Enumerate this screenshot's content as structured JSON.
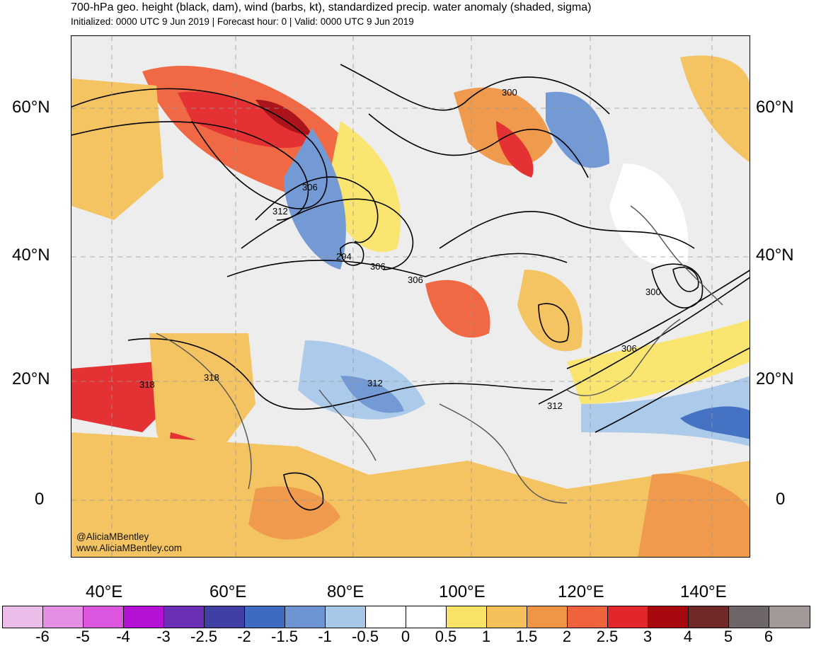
{
  "title": "700-hPa geo. height (black, dam), wind (barbs, kt), standardized precip. water anomaly (shaded, sigma)",
  "subtitle": "Initialized: 0000 UTC 9 Jun 2019 | Forecast hour: 0 | Valid: 0000 UTC 9 Jun 2019",
  "lat_labels": {
    "n60": "60°N",
    "n40": "40°N",
    "n20": "20°N",
    "eq": "0"
  },
  "lon_labels": {
    "e40": "40°E",
    "e60": "60°E",
    "e80": "80°E",
    "e100": "100°E",
    "e120": "120°E",
    "e140": "140°E"
  },
  "contour_labels": {
    "c300_north": "300",
    "c306_west": "306",
    "c312_west": "312",
    "c294": "294",
    "c306_center": "306",
    "c306_center2": "306",
    "c300_east": "300",
    "c306_east": "306",
    "c318_a": "318",
    "c318_b": "318",
    "c312_center": "312",
    "c312_east": "312"
  },
  "credit": {
    "handle": "@AliciaMBentley",
    "site": "www.AliciaMBentley.com"
  },
  "colorbar": {
    "colors": [
      "#ebbde8",
      "#e68ee3",
      "#dd56e0",
      "#b512d6",
      "#6a2fb5",
      "#3f3fa6",
      "#3d6bc0",
      "#6d95d3",
      "#a8c8e8",
      "#ffffff",
      "#ffffff",
      "#f9e469",
      "#f4c05a",
      "#ef9544",
      "#f0623b",
      "#e3262a",
      "#a6080e",
      "#712828",
      "#6e6666",
      "#a29999"
    ],
    "labels": [
      "-6",
      "-5",
      "-4",
      "-3",
      "-2.5",
      "-2",
      "-1.5",
      "-1",
      "-0.5",
      "0",
      "0.5",
      "1",
      "1.5",
      "2",
      "2.5",
      "3",
      "4",
      "5",
      "6"
    ]
  }
}
